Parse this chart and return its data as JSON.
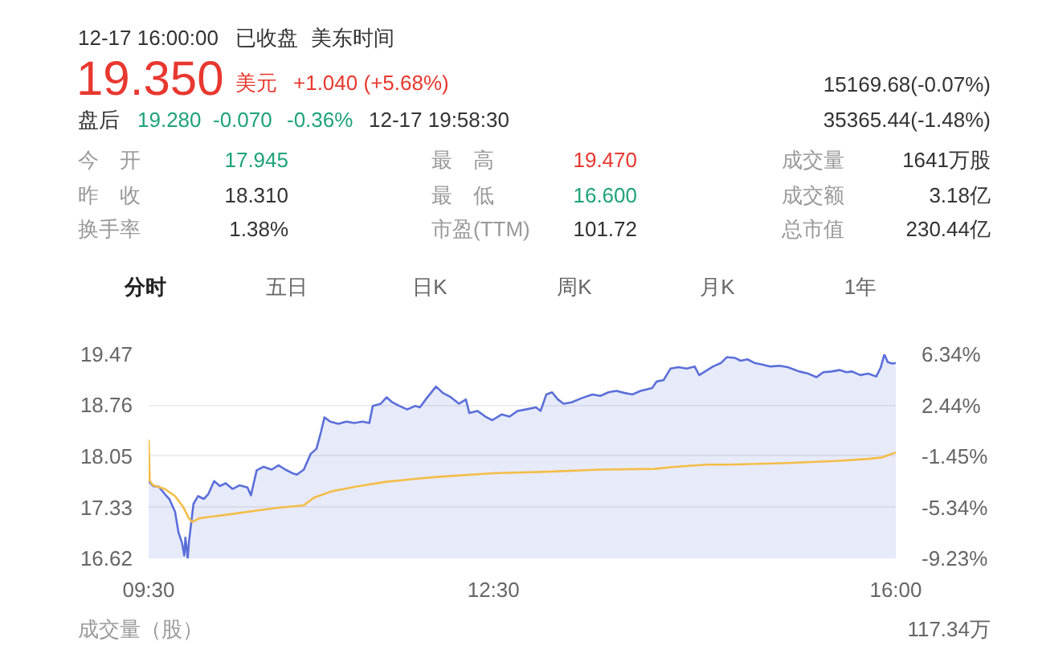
{
  "chart_data": {
    "type": "area",
    "annotations": [
      "12-17 16:00:00",
      "已收盘",
      "美东时间",
      "19.350",
      "美元",
      "+1.040 (+5.68%)",
      "15169.68(-0.07%)",
      "35365.44(-1.48%)",
      "盘后",
      "19.280",
      "-0.070",
      "-0.36%",
      "12-17 19:58:30",
      "今　开",
      "17.945",
      "最　高",
      "19.470",
      "成交量",
      "1641万股",
      "昨　收",
      "18.310",
      "最　低",
      "16.600",
      "成交额",
      "3.18亿",
      "换手率",
      "1.38%",
      "市盈(TTM)",
      "101.72",
      "总市值",
      "230.44亿",
      "分时",
      "五日",
      "日K",
      "周K",
      "月K",
      "1年",
      "成交量（股）",
      "117.34万"
    ],
    "xlim": [
      9.5,
      16
    ],
    "xticks": [
      {
        "value": 9.5,
        "label": "09:30"
      },
      {
        "value": 12.5,
        "label": "12:30"
      },
      {
        "value": 16,
        "label": "16:00"
      }
    ],
    "ylim": [
      16.62,
      19.47
    ],
    "yticks": [
      16.62,
      17.33,
      18.05,
      18.76,
      19.47
    ],
    "y2lim": [
      -9.23,
      6.34
    ],
    "y2ticks": [
      {
        "value": -9.23,
        "label": "-9.23%"
      },
      {
        "value": -5.34,
        "label": "-5.34%"
      },
      {
        "value": -1.45,
        "label": "-1.45%"
      },
      {
        "value": 2.44,
        "label": "2.44%"
      },
      {
        "value": 6.34,
        "label": "6.34%"
      }
    ],
    "grid": "y",
    "series": [
      {
        "color": "#5b6fd9",
        "x": [
          9.5,
          9.54,
          9.59,
          9.64,
          9.68,
          9.73,
          9.76,
          9.79,
          9.81,
          9.82,
          9.84,
          9.85,
          9.89,
          9.93,
          9.98,
          10.02,
          10.07,
          10.12,
          10.17,
          10.23,
          10.29,
          10.36,
          10.39,
          10.44,
          10.5,
          10.57,
          10.63,
          10.69,
          10.75,
          10.79,
          10.85,
          10.91,
          10.96,
          11.0,
          11.03,
          11.08,
          11.15,
          11.22,
          11.29,
          11.36,
          11.42,
          11.45,
          11.52,
          11.57,
          11.62,
          11.68,
          11.75,
          11.82,
          11.86,
          11.92,
          12.0,
          12.06,
          12.13,
          12.2,
          12.26,
          12.29,
          12.36,
          12.43,
          12.49,
          12.57,
          12.64,
          12.71,
          12.78,
          12.87,
          12.91,
          12.96,
          13.01,
          13.06,
          13.11,
          13.18,
          13.27,
          13.36,
          13.43,
          13.5,
          13.57,
          13.64,
          13.71,
          13.78,
          13.88,
          13.92,
          13.98,
          14.04,
          14.11,
          14.18,
          14.25,
          14.29,
          14.36,
          14.41,
          14.48,
          14.53,
          14.6,
          14.65,
          14.71,
          14.77,
          14.83,
          14.91,
          14.99,
          15.06,
          15.16,
          15.24,
          15.31,
          15.37,
          15.44,
          15.51,
          15.57,
          15.62,
          15.69,
          15.76,
          15.83,
          15.87,
          15.9,
          15.93,
          15.97,
          16.0
        ],
        "values": [
          17.7,
          17.63,
          17.62,
          17.52,
          17.45,
          17.27,
          16.98,
          16.84,
          16.66,
          16.91,
          16.62,
          16.84,
          17.38,
          17.49,
          17.45,
          17.52,
          17.7,
          17.63,
          17.67,
          17.59,
          17.64,
          17.61,
          17.5,
          17.85,
          17.9,
          17.86,
          17.92,
          17.86,
          17.81,
          17.79,
          17.86,
          18.08,
          18.15,
          18.39,
          18.59,
          18.53,
          18.5,
          18.53,
          18.51,
          18.53,
          18.51,
          18.75,
          18.78,
          18.87,
          18.8,
          18.75,
          18.7,
          18.75,
          18.73,
          18.86,
          19.02,
          18.93,
          18.87,
          18.78,
          18.84,
          18.65,
          18.68,
          18.6,
          18.55,
          18.63,
          18.6,
          18.68,
          18.7,
          18.73,
          18.68,
          18.91,
          18.94,
          18.84,
          18.78,
          18.8,
          18.86,
          18.91,
          18.89,
          18.94,
          18.96,
          18.93,
          18.91,
          18.96,
          19.0,
          19.09,
          19.11,
          19.27,
          19.29,
          19.27,
          19.3,
          19.18,
          19.25,
          19.3,
          19.35,
          19.43,
          19.42,
          19.38,
          19.4,
          19.35,
          19.33,
          19.3,
          19.31,
          19.29,
          19.23,
          19.2,
          19.15,
          19.22,
          19.23,
          19.25,
          19.22,
          19.23,
          19.18,
          19.2,
          19.16,
          19.29,
          19.47,
          19.36,
          19.34,
          19.35
        ]
      },
      {
        "type": "line",
        "color": "#f4bd47",
        "x": [
          9.5,
          9.51,
          9.54,
          9.64,
          9.73,
          9.8,
          9.85,
          9.88,
          9.94,
          10.08,
          10.27,
          10.45,
          10.64,
          10.85,
          10.89,
          10.94,
          11.1,
          11.33,
          11.57,
          11.82,
          12.03,
          12.5,
          12.97,
          13.43,
          13.9,
          14.08,
          14.36,
          14.55,
          15.02,
          15.48,
          15.76,
          15.88,
          16.0
        ],
        "values": [
          18.28,
          17.7,
          17.64,
          17.59,
          17.49,
          17.34,
          17.18,
          17.13,
          17.18,
          17.21,
          17.25,
          17.29,
          17.33,
          17.36,
          17.41,
          17.47,
          17.56,
          17.63,
          17.69,
          17.73,
          17.76,
          17.81,
          17.83,
          17.86,
          17.87,
          17.9,
          17.93,
          17.93,
          17.95,
          17.98,
          18.01,
          18.03,
          18.1
        ]
      }
    ]
  }
}
